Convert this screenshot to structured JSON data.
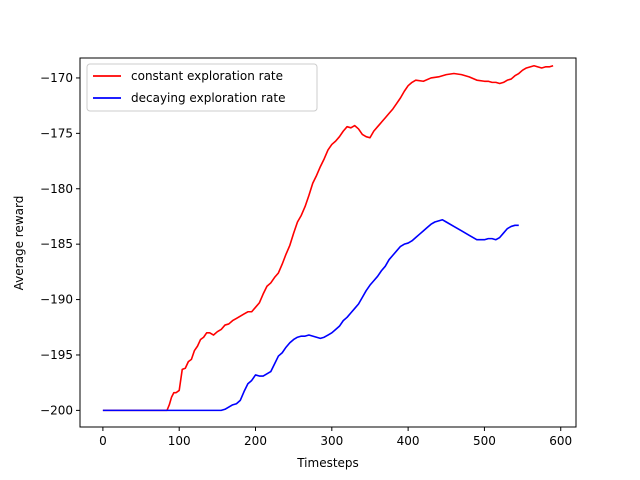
{
  "chart_data": {
    "type": "line",
    "title": "",
    "xlabel": "Timesteps",
    "ylabel": "Average reward",
    "xlim": [
      -30,
      620
    ],
    "ylim": [
      -201.5,
      -168.2
    ],
    "xticks": [
      0,
      100,
      200,
      300,
      400,
      500,
      600
    ],
    "yticks": [
      -200,
      -195,
      -190,
      -185,
      -180,
      -175,
      -170
    ],
    "xtick_labels": [
      "0",
      "100",
      "200",
      "300",
      "400",
      "500",
      "600"
    ],
    "ytick_labels": [
      "−200",
      "−195",
      "−190",
      "−185",
      "−180",
      "−175",
      "−170"
    ],
    "grid": false,
    "legend_position": "top-left",
    "series": [
      {
        "name": "constant exploration rate",
        "color": "#ff0000",
        "x": [
          0,
          40,
          84,
          87,
          90,
          93,
          96,
          100,
          104,
          108,
          112,
          116,
          120,
          124,
          128,
          132,
          136,
          140,
          145,
          150,
          155,
          160,
          165,
          170,
          175,
          180,
          185,
          190,
          195,
          200,
          205,
          210,
          215,
          220,
          225,
          230,
          235,
          240,
          245,
          250,
          255,
          260,
          265,
          270,
          275,
          280,
          285,
          290,
          295,
          300,
          305,
          310,
          315,
          320,
          325,
          330,
          335,
          340,
          345,
          350,
          355,
          360,
          365,
          370,
          375,
          380,
          385,
          390,
          395,
          400,
          405,
          410,
          420,
          430,
          440,
          450,
          460,
          470,
          480,
          490,
          500,
          505,
          510,
          515,
          520,
          525,
          530,
          535,
          540,
          545,
          550,
          555,
          560,
          565,
          570,
          575,
          580,
          585,
          590
        ],
        "y": [
          -200,
          -200,
          -200,
          -199.5,
          -198.8,
          -198.4,
          -198.4,
          -198.2,
          -196.3,
          -196.2,
          -195.6,
          -195.4,
          -194.6,
          -194.2,
          -193.6,
          -193.4,
          -193.0,
          -193.0,
          -193.2,
          -192.9,
          -192.7,
          -192.3,
          -192.2,
          -191.9,
          -191.7,
          -191.5,
          -191.3,
          -191.1,
          -191.1,
          -190.7,
          -190.3,
          -189.5,
          -188.8,
          -188.5,
          -188.0,
          -187.6,
          -186.8,
          -185.9,
          -185.1,
          -184.0,
          -183.0,
          -182.4,
          -181.6,
          -180.6,
          -179.5,
          -178.8,
          -178.0,
          -177.3,
          -176.5,
          -176.0,
          -175.7,
          -175.3,
          -174.8,
          -174.4,
          -174.5,
          -174.3,
          -174.6,
          -175.1,
          -175.3,
          -175.4,
          -174.8,
          -174.4,
          -174.0,
          -173.6,
          -173.2,
          -172.8,
          -172.3,
          -171.8,
          -171.2,
          -170.7,
          -170.4,
          -170.2,
          -170.3,
          -170.0,
          -169.9,
          -169.7,
          -169.6,
          -169.7,
          -169.9,
          -170.2,
          -170.3,
          -170.3,
          -170.4,
          -170.4,
          -170.5,
          -170.4,
          -170.2,
          -170.1,
          -169.8,
          -169.6,
          -169.3,
          -169.1,
          -169.0,
          -168.9,
          -169.0,
          -169.1,
          -169.0,
          -169.0,
          -168.9
        ]
      },
      {
        "name": "decaying exploration rate",
        "color": "#0000ff",
        "x": [
          0,
          60,
          120,
          140,
          150,
          155,
          160,
          165,
          170,
          175,
          180,
          185,
          190,
          195,
          200,
          205,
          210,
          215,
          220,
          225,
          230,
          235,
          240,
          245,
          250,
          255,
          260,
          265,
          270,
          275,
          280,
          285,
          290,
          295,
          300,
          305,
          310,
          315,
          320,
          325,
          330,
          335,
          340,
          345,
          350,
          355,
          360,
          365,
          370,
          375,
          380,
          385,
          390,
          395,
          400,
          405,
          410,
          415,
          420,
          425,
          430,
          435,
          440,
          445,
          450,
          460,
          470,
          480,
          490,
          500,
          505,
          510,
          515,
          520,
          525,
          530,
          535,
          540,
          545
        ],
        "y": [
          -200,
          -200,
          -200,
          -200,
          -200,
          -200,
          -199.9,
          -199.7,
          -199.5,
          -199.4,
          -199.1,
          -198.3,
          -197.6,
          -197.3,
          -196.8,
          -196.9,
          -196.9,
          -196.7,
          -196.5,
          -195.8,
          -195.1,
          -194.8,
          -194.3,
          -193.9,
          -193.6,
          -193.4,
          -193.3,
          -193.3,
          -193.2,
          -193.3,
          -193.4,
          -193.5,
          -193.4,
          -193.2,
          -193.0,
          -192.7,
          -192.4,
          -191.9,
          -191.6,
          -191.2,
          -190.8,
          -190.4,
          -189.8,
          -189.2,
          -188.7,
          -188.3,
          -187.9,
          -187.4,
          -187.0,
          -186.4,
          -186.0,
          -185.6,
          -185.2,
          -185.0,
          -184.9,
          -184.7,
          -184.4,
          -184.1,
          -183.8,
          -183.5,
          -183.2,
          -183.0,
          -182.9,
          -182.8,
          -183.0,
          -183.4,
          -183.8,
          -184.2,
          -184.6,
          -184.6,
          -184.5,
          -184.5,
          -184.6,
          -184.4,
          -184.0,
          -183.6,
          -183.4,
          -183.3,
          -183.3
        ]
      }
    ]
  }
}
